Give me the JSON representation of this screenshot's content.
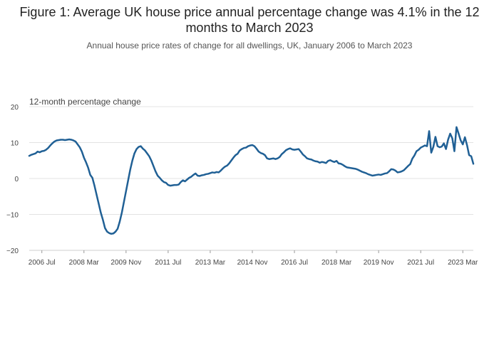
{
  "chart_data": {
    "type": "line",
    "title": "Figure 1: Average UK house price annual percentage change was 4.1% in the 12 months to March 2023",
    "subtitle": "Annual house price rates of change for all dwellings, UK, January 2006 to March 2023",
    "ylabel": "12-month percentage change",
    "xlabel": "",
    "ylim": [
      -20,
      20
    ],
    "yticks": [
      20,
      10,
      0,
      -10,
      -20
    ],
    "ytick_labels": [
      "20",
      "10",
      "0",
      "−10",
      "−20"
    ],
    "x_start": "2006-01",
    "xticks": [
      {
        "label": "2006 Jul",
        "month": 6
      },
      {
        "label": "2008 Mar",
        "month": 26
      },
      {
        "label": "2009 Nov",
        "month": 46
      },
      {
        "label": "2011 Jul",
        "month": 66
      },
      {
        "label": "2013 Mar",
        "month": 86
      },
      {
        "label": "2014 Nov",
        "month": 106
      },
      {
        "label": "2016 Jul",
        "month": 126
      },
      {
        "label": "2018 Mar",
        "month": 146
      },
      {
        "label": "2019 Nov",
        "month": 166
      },
      {
        "label": "2021 Jul",
        "month": 186
      },
      {
        "label": "2023 Mar",
        "month": 206
      }
    ],
    "grid": true,
    "legend": "none",
    "color": "#206095",
    "series": [
      {
        "name": "",
        "values": [
          6.3,
          6.6,
          6.8,
          7.0,
          7.5,
          7.3,
          7.6,
          7.7,
          8.0,
          8.5,
          9.2,
          9.8,
          10.3,
          10.6,
          10.7,
          10.8,
          10.8,
          10.7,
          10.8,
          10.9,
          10.8,
          10.6,
          10.3,
          9.5,
          8.7,
          7.5,
          5.8,
          4.5,
          3.0,
          1.0,
          0.2,
          -2.0,
          -4.5,
          -7.0,
          -9.5,
          -11.5,
          -13.8,
          -14.8,
          -15.2,
          -15.4,
          -15.3,
          -14.8,
          -14.0,
          -12.0,
          -9.5,
          -6.5,
          -3.5,
          -0.5,
          2.5,
          5.0,
          7.0,
          8.2,
          8.8,
          9.0,
          8.3,
          7.8,
          7.0,
          6.2,
          5.0,
          3.5,
          2.0,
          0.8,
          0.2,
          -0.5,
          -1.0,
          -1.2,
          -1.8,
          -2.0,
          -1.9,
          -1.8,
          -1.8,
          -1.7,
          -1.0,
          -0.5,
          -0.8,
          -0.3,
          0.2,
          0.5,
          1.0,
          1.4,
          0.8,
          0.7,
          0.9,
          1.0,
          1.2,
          1.3,
          1.5,
          1.7,
          1.6,
          1.8,
          1.7,
          2.2,
          2.8,
          3.3,
          3.6,
          4.2,
          5.0,
          5.8,
          6.5,
          6.9,
          7.8,
          8.2,
          8.5,
          8.6,
          9.0,
          9.2,
          9.3,
          9.0,
          8.3,
          7.5,
          7.1,
          6.9,
          6.5,
          5.6,
          5.4,
          5.5,
          5.6,
          5.4,
          5.6,
          6.0,
          6.8,
          7.3,
          7.9,
          8.2,
          8.4,
          8.1,
          8.0,
          8.1,
          8.2,
          7.5,
          6.7,
          6.2,
          5.6,
          5.4,
          5.3,
          5.0,
          4.8,
          4.7,
          4.4,
          4.6,
          4.5,
          4.3,
          4.9,
          5.1,
          4.8,
          4.6,
          4.9,
          4.2,
          4.1,
          3.8,
          3.4,
          3.1,
          3.0,
          2.9,
          2.8,
          2.7,
          2.5,
          2.2,
          1.9,
          1.7,
          1.5,
          1.2,
          1.0,
          0.8,
          0.9,
          1.0,
          1.1,
          1.0,
          1.2,
          1.4,
          1.5,
          2.0,
          2.6,
          2.5,
          2.2,
          1.7,
          1.8,
          2.0,
          2.3,
          2.9,
          3.5,
          4.0,
          5.5,
          6.4,
          7.6,
          8.0,
          8.6,
          8.9,
          9.2,
          9.0,
          13.2,
          7.2,
          8.8,
          11.6,
          9.0,
          8.7,
          8.9,
          9.8,
          8.2,
          10.8,
          12.5,
          11.2,
          7.6,
          14.3,
          12.5,
          10.6,
          9.5,
          11.5,
          9.3,
          6.5,
          6.2,
          4.1
        ]
      }
    ]
  }
}
